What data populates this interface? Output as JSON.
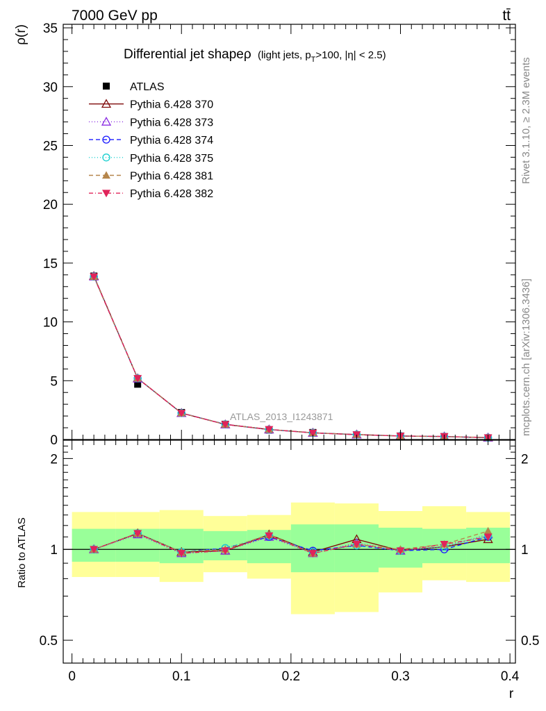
{
  "header": {
    "energy_label": "7000 GeV pp",
    "process_label": "tt̄"
  },
  "side_labels": {
    "rivet": "Rivet 3.1.10, ≥ 2.3M events",
    "mcplots": "mcplots.cern.ch [arXiv:1306.3436]"
  },
  "watermark": "ATLAS_2013_I1243871",
  "chart_data": [
    {
      "type": "line",
      "title": "Differential jet shape",
      "title_rho": "ρ",
      "title_detail": "(light jets, p",
      "title_sub": "T",
      "title_detail2": ">100, |η| < 2.5)",
      "ylabel": "ρ(r)",
      "xlabel": "r",
      "xlim": [
        -0.008,
        0.405
      ],
      "ylim": [
        0,
        35.3
      ],
      "x_ticks": [
        0,
        0.1,
        0.2,
        0.3,
        0.4
      ],
      "y_ticks": [
        0,
        5,
        10,
        15,
        20,
        25,
        30,
        35
      ],
      "y_tick_labels": [
        "0",
        "5",
        "10",
        "15",
        "20",
        "25",
        "30",
        "35"
      ],
      "x": [
        0.02,
        0.06,
        0.1,
        0.14,
        0.18,
        0.22,
        0.26,
        0.3,
        0.34,
        0.38
      ],
      "legend_position": "top-left",
      "data_series": {
        "name": "ATLAS",
        "color": "#000000",
        "values": [
          13.9,
          4.7,
          2.3,
          1.3,
          0.8,
          0.6,
          0.4,
          0.3,
          0.25,
          0.15
        ]
      },
      "series": [
        {
          "name": "Pythia 6.428 370",
          "color": "#7f0a0a",
          "marker": "triangle-open",
          "dash": "",
          "values": [
            13.9,
            5.2,
            2.25,
            1.28,
            0.85,
            0.57,
            0.42,
            0.3,
            0.25,
            0.16
          ]
        },
        {
          "name": "Pythia 6.428 373",
          "color": "#8a2be2",
          "marker": "triangle-open",
          "dash": "1,3",
          "values": [
            13.85,
            5.18,
            2.24,
            1.27,
            0.84,
            0.56,
            0.41,
            0.3,
            0.25,
            0.16
          ]
        },
        {
          "name": "Pythia 6.428 374",
          "color": "#1a1aff",
          "marker": "circle-open",
          "dash": "6,4",
          "values": [
            13.85,
            5.2,
            2.25,
            1.3,
            0.85,
            0.57,
            0.42,
            0.3,
            0.25,
            0.16
          ]
        },
        {
          "name": "Pythia 6.428 375",
          "color": "#19cfcf",
          "marker": "circle-open",
          "dash": "1,3",
          "values": [
            13.85,
            5.2,
            2.25,
            1.3,
            0.85,
            0.57,
            0.42,
            0.3,
            0.25,
            0.16
          ]
        },
        {
          "name": "Pythia 6.428 381",
          "color": "#b5854b",
          "marker": "triangle-filled",
          "dash": "6,4",
          "values": [
            13.85,
            5.21,
            2.25,
            1.29,
            0.86,
            0.57,
            0.42,
            0.3,
            0.25,
            0.17
          ]
        },
        {
          "name": "Pythia 6.428 382",
          "color": "#e0245a",
          "marker": "triangle-down-filled",
          "dash": "6,3,1,3",
          "values": [
            13.85,
            5.2,
            2.24,
            1.29,
            0.86,
            0.56,
            0.41,
            0.3,
            0.26,
            0.16
          ]
        }
      ]
    },
    {
      "type": "line",
      "ylabel": "Ratio to ATLAS",
      "ylim": [
        0.42,
        2.3
      ],
      "log_y": true,
      "y_tick_values": [
        0.5,
        1,
        2
      ],
      "y_tick_labels": [
        "0.5",
        "1",
        "2"
      ],
      "x_ticks": [
        0,
        0.1,
        0.2,
        0.3,
        0.4
      ],
      "x_tick_labels": [
        "0",
        "0.1",
        "0.2",
        "0.3",
        "0.4"
      ],
      "bin_edges": [
        0,
        0.04,
        0.08,
        0.12,
        0.16,
        0.2,
        0.24,
        0.28,
        0.32,
        0.36,
        0.4
      ],
      "band_stat": {
        "color": "#99ff99",
        "lo": [
          0.91,
          0.91,
          0.9,
          0.92,
          0.9,
          0.84,
          0.84,
          0.87,
          0.9,
          0.9
        ],
        "hi": [
          1.17,
          1.17,
          1.17,
          1.15,
          1.16,
          1.21,
          1.21,
          1.18,
          1.17,
          1.18
        ]
      },
      "band_total": {
        "color": "#ffff99",
        "lo": [
          0.81,
          0.81,
          0.78,
          0.84,
          0.8,
          0.61,
          0.62,
          0.72,
          0.79,
          0.78
        ],
        "hi": [
          1.33,
          1.33,
          1.35,
          1.29,
          1.3,
          1.43,
          1.42,
          1.34,
          1.39,
          1.33
        ]
      },
      "x": [
        0.02,
        0.06,
        0.1,
        0.14,
        0.18,
        0.22,
        0.26,
        0.3,
        0.34,
        0.38
      ],
      "series": [
        {
          "name": "Pythia 6.428 370",
          "color": "#7f0a0a",
          "marker": "triangle-open",
          "dash": "",
          "values": [
            1.0,
            1.13,
            0.98,
            0.99,
            1.12,
            0.98,
            1.08,
            0.99,
            1.02,
            1.08
          ]
        },
        {
          "name": "Pythia 6.428 373",
          "color": "#8a2be2",
          "marker": "triangle-open",
          "dash": "1,3",
          "values": [
            1.0,
            1.12,
            0.97,
            0.99,
            1.1,
            0.97,
            1.05,
            0.99,
            1.02,
            1.12
          ]
        },
        {
          "name": "Pythia 6.428 374",
          "color": "#1a1aff",
          "marker": "circle-open",
          "dash": "6,4",
          "values": [
            1.0,
            1.13,
            0.98,
            1.01,
            1.1,
            0.99,
            1.03,
            0.99,
            1.0,
            1.1
          ]
        },
        {
          "name": "Pythia 6.428 375",
          "color": "#19cfcf",
          "marker": "circle-open",
          "dash": "1,3",
          "values": [
            1.0,
            1.13,
            0.98,
            1.01,
            1.11,
            0.98,
            1.03,
            0.99,
            1.02,
            1.11
          ]
        },
        {
          "name": "Pythia 6.428 381",
          "color": "#b5854b",
          "marker": "triangle-filled",
          "dash": "6,4",
          "values": [
            1.0,
            1.13,
            0.98,
            1.0,
            1.12,
            0.97,
            1.04,
            1.0,
            1.04,
            1.15
          ]
        },
        {
          "name": "Pythia 6.428 382",
          "color": "#e0245a",
          "marker": "triangle-down-filled",
          "dash": "6,3,1,3",
          "values": [
            1.0,
            1.13,
            0.97,
            0.99,
            1.11,
            0.97,
            1.04,
            0.99,
            1.04,
            1.1
          ]
        }
      ]
    }
  ]
}
